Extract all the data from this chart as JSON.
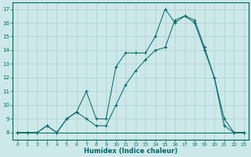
{
  "xlabel": "Humidex (Indice chaleur)",
  "xlim": [
    -0.5,
    23.5
  ],
  "ylim": [
    7.5,
    17.5
  ],
  "xticks": [
    0,
    1,
    2,
    3,
    4,
    5,
    6,
    7,
    8,
    9,
    10,
    11,
    12,
    13,
    14,
    15,
    16,
    17,
    18,
    19,
    20,
    21,
    22,
    23
  ],
  "yticks": [
    8,
    9,
    10,
    11,
    12,
    13,
    14,
    15,
    16,
    17
  ],
  "background_color": "#cde8e8",
  "grid_color": "#aad0d0",
  "line_color": "#006666",
  "line1_x": [
    0,
    1,
    2,
    3,
    4,
    5,
    6,
    7,
    8,
    9,
    10,
    11,
    12,
    13,
    14,
    15,
    16,
    17,
    18,
    19,
    20,
    21,
    22,
    23
  ],
  "line1_y": [
    8,
    8,
    8,
    8,
    8,
    8,
    8,
    8,
    8,
    8,
    8,
    8,
    8,
    8,
    8,
    8,
    8,
    8,
    8,
    8,
    8,
    8,
    8,
    8
  ],
  "line2_x": [
    0,
    1,
    2,
    3,
    4,
    5,
    6,
    7,
    8,
    9,
    10,
    11,
    12,
    13,
    14,
    15,
    16,
    17,
    18,
    19,
    20,
    21,
    22,
    23
  ],
  "line2_y": [
    8,
    8,
    8,
    8.5,
    8,
    9,
    9.5,
    11,
    9,
    9,
    12.8,
    13.8,
    13.8,
    13.8,
    15,
    17,
    16,
    16.5,
    16,
    14,
    12,
    8.5,
    8,
    8
  ],
  "line3_x": [
    0,
    1,
    2,
    3,
    4,
    5,
    6,
    7,
    8,
    9,
    10,
    11,
    12,
    13,
    14,
    15,
    16,
    17,
    18,
    19,
    20,
    21,
    22,
    23
  ],
  "line3_y": [
    8,
    8,
    8,
    8.5,
    8,
    9,
    9.5,
    9,
    8.5,
    8.5,
    10,
    11.5,
    12.5,
    13.3,
    14,
    14.2,
    16.2,
    16.5,
    16.2,
    14.2,
    12,
    9,
    8,
    8
  ]
}
